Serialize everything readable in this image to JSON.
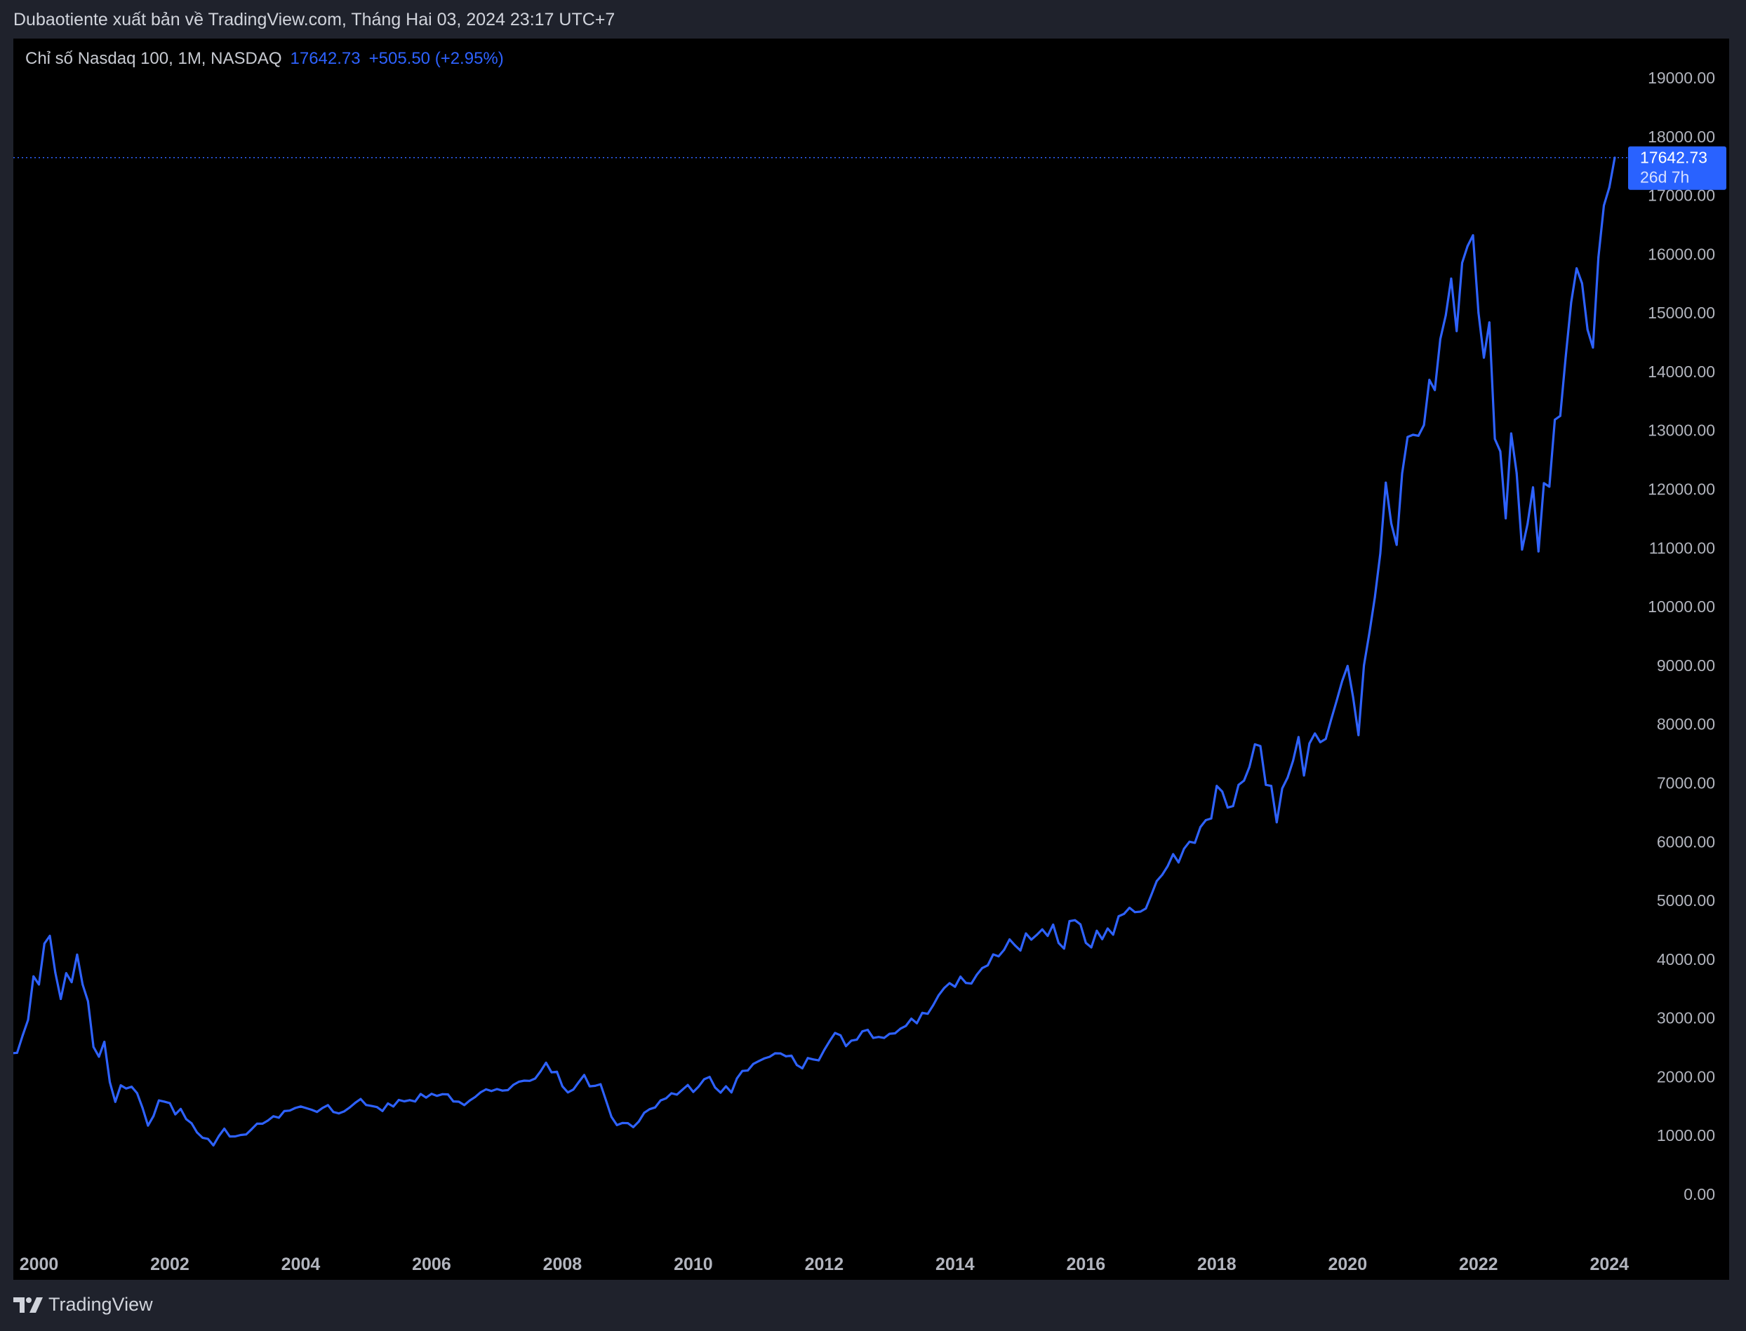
{
  "header": {
    "published": "Dubaotiente xuất bản về TradingView.com, Tháng Hai 03, 2024 23:17 UTC+7"
  },
  "legend": {
    "symbol": "Chỉ số Nasdaq 100, 1M, NASDAQ",
    "price": "17642.73",
    "change": "+505.50 (+2.95%)"
  },
  "price_label": {
    "price": "17642.73",
    "countdown": "26d 7h"
  },
  "footer": {
    "brand": "TradingView"
  },
  "colors": {
    "line": "#2e62ff",
    "background": "#000000",
    "frame": "#1f222c",
    "axis_text": "#b2b5be"
  },
  "chart_data": {
    "type": "line",
    "title": "Chỉ số Nasdaq 100, 1M, NASDAQ",
    "interval": "monthly",
    "start": "1999-08",
    "end": "2024-02",
    "ylim": [
      0,
      19000
    ],
    "y_ticks": [
      "0.00",
      "1000.00",
      "2000.00",
      "3000.00",
      "4000.00",
      "5000.00",
      "6000.00",
      "7000.00",
      "8000.00",
      "9000.00",
      "10000.00",
      "11000.00",
      "12000.00",
      "13000.00",
      "14000.00",
      "15000.00",
      "16000.00",
      "17000.00",
      "18000.00",
      "19000.00"
    ],
    "x_ticks": [
      "2000",
      "2002",
      "2004",
      "2006",
      "2008",
      "2010",
      "2012",
      "2014",
      "2016",
      "2018",
      "2020",
      "2022",
      "2024"
    ],
    "last_value": 17642.73,
    "values": [
      2400,
      2407,
      2700,
      2967,
      3708,
      3570,
      4267,
      4398,
      3774,
      3324,
      3763,
      3609,
      4078,
      3571,
      3283,
      2507,
      2341,
      2594,
      1908,
      1573,
      1855,
      1800,
      1830,
      1720,
      1470,
      1168,
      1330,
      1597,
      1577,
      1550,
      1359,
      1452,
      1278,
      1207,
      1051,
      962,
      942,
      832,
      990,
      1116,
      984,
      985,
      1009,
      1018,
      1106,
      1201,
      1201,
      1254,
      1327,
      1303,
      1416,
      1424,
      1468,
      1494,
      1467,
      1438,
      1401,
      1468,
      1517,
      1400,
      1376,
      1412,
      1477,
      1556,
      1621,
      1519,
      1502,
      1483,
      1417,
      1545,
      1493,
      1605,
      1581,
      1602,
      1579,
      1707,
      1645,
      1709,
      1675,
      1703,
      1700,
      1580,
      1575,
      1517,
      1595,
      1655,
      1735,
      1785,
      1757,
      1790,
      1764,
      1772,
      1862,
      1914,
      1934,
      1930,
      1969,
      2092,
      2239,
      2076,
      2085,
      1837,
      1733,
      1782,
      1908,
      2030,
      1837,
      1845,
      1873,
      1595,
      1318,
      1177,
      1212,
      1210,
      1142,
      1237,
      1387,
      1448,
      1477,
      1596,
      1632,
      1718,
      1696,
      1779,
      1860,
      1741,
      1835,
      1957,
      1997,
      1817,
      1729,
      1837,
      1733,
      1971,
      2098,
      2107,
      2217,
      2265,
      2311,
      2339,
      2399,
      2397,
      2347,
      2359,
      2198,
      2143,
      2318,
      2295,
      2278,
      2453,
      2604,
      2745,
      2705,
      2521,
      2615,
      2632,
      2772,
      2799,
      2660,
      2677,
      2660,
      2731,
      2739,
      2819,
      2866,
      2988,
      2910,
      3088,
      3071,
      3218,
      3386,
      3507,
      3592,
      3531,
      3703,
      3596,
      3586,
      3736,
      3850,
      3896,
      4082,
      4050,
      4159,
      4337,
      4236,
      4148,
      4439,
      4333,
      4415,
      4508,
      4397,
      4589,
      4275,
      4181,
      4648,
      4664,
      4593,
      4279,
      4201,
      4484,
      4341,
      4523,
      4418,
      4731,
      4771,
      4875,
      4801,
      4810,
      4863,
      5094,
      5330,
      5436,
      5584,
      5788,
      5647,
      5880,
      6000,
      5980,
      6248,
      6367,
      6396,
      6950,
      6854,
      6581,
      6606,
      6968,
      7040,
      7272,
      7657,
      7627,
      6967,
      6950,
      6330,
      6906,
      7090,
      7378,
      7781,
      7127,
      7671,
      7842,
      7693,
      7750,
      8084,
      8403,
      8733,
      8991,
      8462,
      7813,
      9000,
      9556,
      10156,
      10905,
      12111,
      11418,
      11052,
      12268,
      12888,
      12925,
      12909,
      13091,
      13860,
      13687,
      14554,
      14959,
      15583,
      14690,
      15850,
      16135,
      16320,
      15000,
      14238,
      14838,
      12855,
      12643,
      11504,
      12948,
      12272,
      10971,
      11406,
      12031,
      10939,
      12102,
      12042,
      13182,
      13246,
      14254,
      15180,
      15758,
      15501,
      14715,
      14410,
      15947,
      16826,
      17137,
      17642.73
    ]
  }
}
